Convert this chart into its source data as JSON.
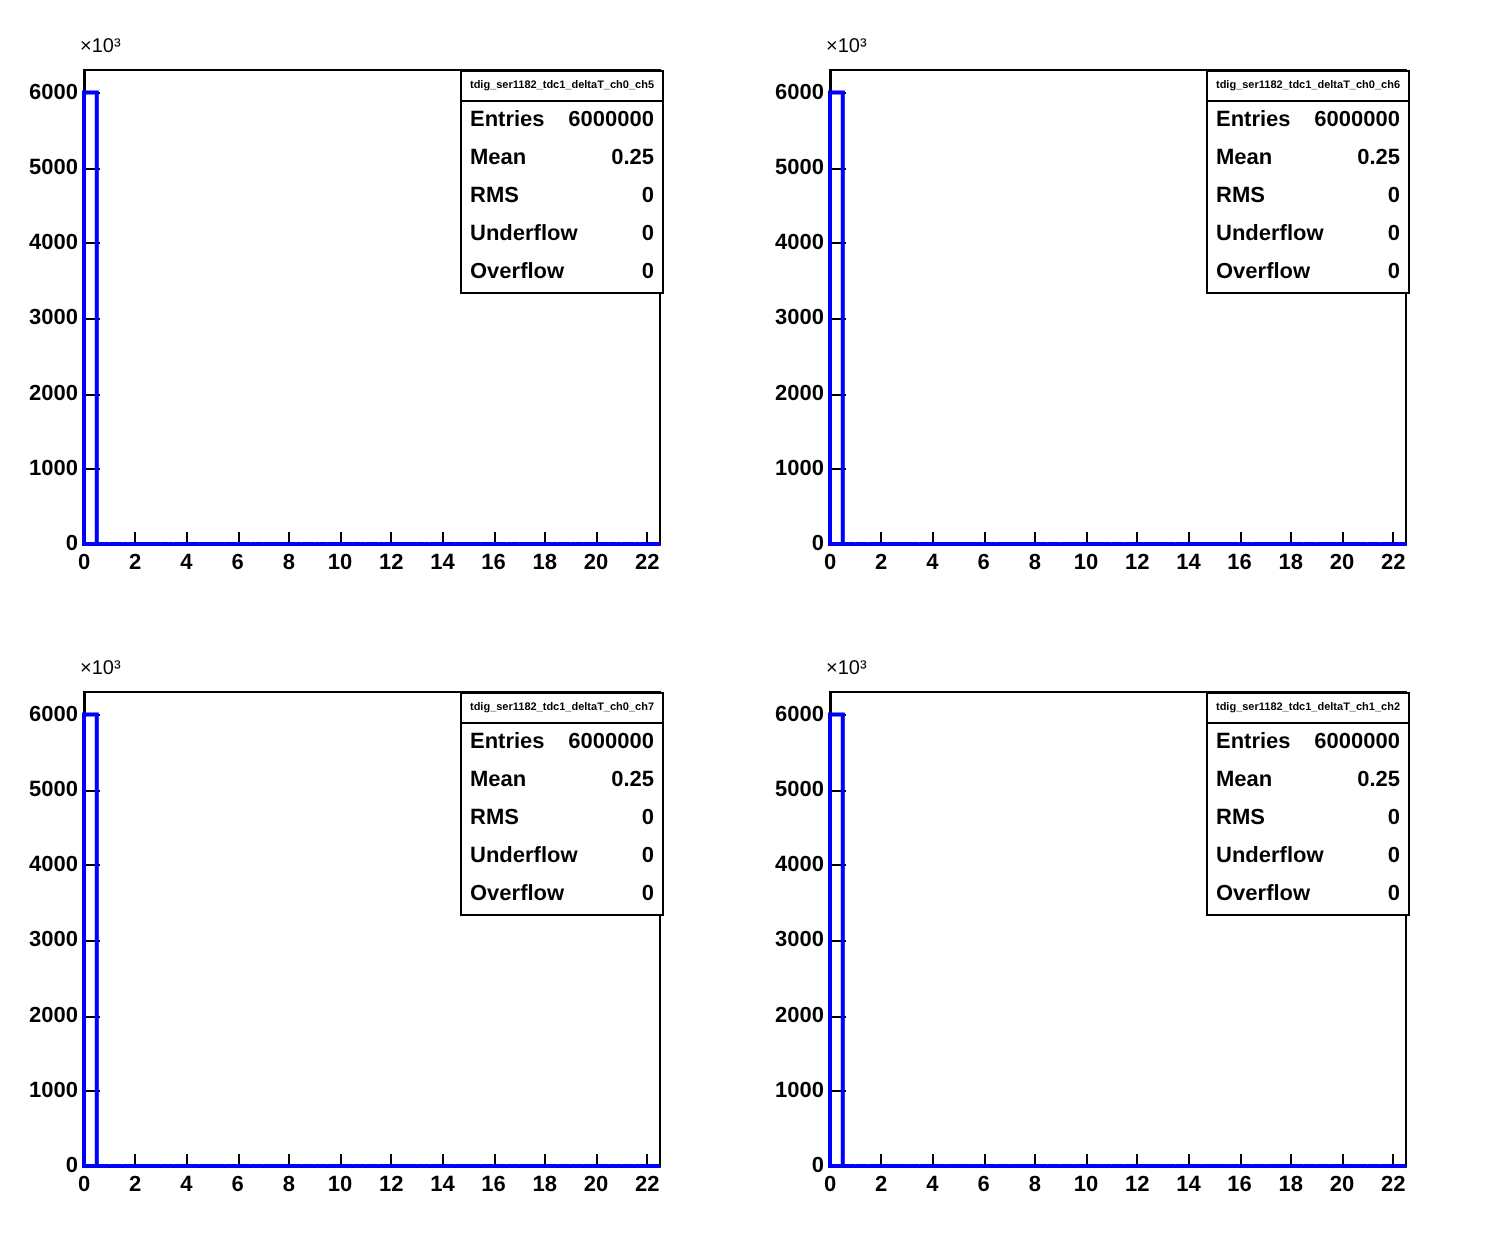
{
  "chart_data": [
    {
      "type": "histogram",
      "title": "tdig_ser1182_tdc1_deltaT_ch0_ch5",
      "color": "#0000ff",
      "bins": [
        0,
        0.5,
        1,
        1.5,
        2,
        2.5,
        3,
        3.5,
        4,
        4.5,
        5,
        5.5,
        6,
        6.5,
        7,
        7.5,
        8,
        8.5,
        9,
        9.5,
        10,
        10.5,
        11,
        11.5,
        12,
        12.5,
        13,
        13.5,
        14,
        14.5,
        15,
        15.5,
        16,
        16.5,
        17,
        17.5,
        18,
        18.5,
        19,
        19.5,
        20,
        20.5,
        21,
        21.5,
        22,
        22.5
      ],
      "values": [
        6000,
        0,
        0,
        0,
        0,
        0,
        0,
        0,
        0,
        0,
        0,
        0,
        0,
        0,
        0,
        0,
        0,
        0,
        0,
        0,
        0,
        0,
        0,
        0,
        0,
        0,
        0,
        0,
        0,
        0,
        0,
        0,
        0,
        0,
        0,
        0,
        0,
        0,
        0,
        0,
        0,
        0,
        0,
        0,
        0
      ],
      "xlim": [
        0,
        22.5
      ],
      "xticks": [
        0,
        2,
        4,
        6,
        8,
        10,
        12,
        14,
        16,
        18,
        20,
        22
      ],
      "ylim": [
        0,
        6300
      ],
      "yticks": [
        0,
        1000,
        2000,
        3000,
        4000,
        5000,
        6000
      ],
      "grid": false,
      "annotations": [
        "×10³",
        "Entries",
        "6000000",
        "Mean",
        "0.25",
        "RMS",
        "0",
        "Underflow",
        "0",
        "Overflow",
        "0"
      ]
    },
    {
      "type": "histogram",
      "title": "tdig_ser1182_tdc1_deltaT_ch0_ch6",
      "color": "#0000ff",
      "bins": [
        0,
        0.5,
        1,
        1.5,
        2,
        2.5,
        3,
        3.5,
        4,
        4.5,
        5,
        5.5,
        6,
        6.5,
        7,
        7.5,
        8,
        8.5,
        9,
        9.5,
        10,
        10.5,
        11,
        11.5,
        12,
        12.5,
        13,
        13.5,
        14,
        14.5,
        15,
        15.5,
        16,
        16.5,
        17,
        17.5,
        18,
        18.5,
        19,
        19.5,
        20,
        20.5,
        21,
        21.5,
        22,
        22.5
      ],
      "values": [
        6000,
        0,
        0,
        0,
        0,
        0,
        0,
        0,
        0,
        0,
        0,
        0,
        0,
        0,
        0,
        0,
        0,
        0,
        0,
        0,
        0,
        0,
        0,
        0,
        0,
        0,
        0,
        0,
        0,
        0,
        0,
        0,
        0,
        0,
        0,
        0,
        0,
        0,
        0,
        0,
        0,
        0,
        0,
        0,
        0
      ],
      "xlim": [
        0,
        22.5
      ],
      "xticks": [
        0,
        2,
        4,
        6,
        8,
        10,
        12,
        14,
        16,
        18,
        20,
        22
      ],
      "ylim": [
        0,
        6300
      ],
      "yticks": [
        0,
        1000,
        2000,
        3000,
        4000,
        5000,
        6000
      ],
      "grid": false,
      "annotations": [
        "×10³",
        "Entries",
        "6000000",
        "Mean",
        "0.25",
        "RMS",
        "0",
        "Underflow",
        "0",
        "Overflow",
        "0"
      ]
    },
    {
      "type": "histogram",
      "title": "tdig_ser1182_tdc1_deltaT_ch0_ch7",
      "color": "#0000ff",
      "bins": [
        0,
        0.5,
        1,
        1.5,
        2,
        2.5,
        3,
        3.5,
        4,
        4.5,
        5,
        5.5,
        6,
        6.5,
        7,
        7.5,
        8,
        8.5,
        9,
        9.5,
        10,
        10.5,
        11,
        11.5,
        12,
        12.5,
        13,
        13.5,
        14,
        14.5,
        15,
        15.5,
        16,
        16.5,
        17,
        17.5,
        18,
        18.5,
        19,
        19.5,
        20,
        20.5,
        21,
        21.5,
        22,
        22.5
      ],
      "values": [
        6000,
        0,
        0,
        0,
        0,
        0,
        0,
        0,
        0,
        0,
        0,
        0,
        0,
        0,
        0,
        0,
        0,
        0,
        0,
        0,
        0,
        0,
        0,
        0,
        0,
        0,
        0,
        0,
        0,
        0,
        0,
        0,
        0,
        0,
        0,
        0,
        0,
        0,
        0,
        0,
        0,
        0,
        0,
        0,
        0
      ],
      "xlim": [
        0,
        22.5
      ],
      "xticks": [
        0,
        2,
        4,
        6,
        8,
        10,
        12,
        14,
        16,
        18,
        20,
        22
      ],
      "ylim": [
        0,
        6300
      ],
      "yticks": [
        0,
        1000,
        2000,
        3000,
        4000,
        5000,
        6000
      ],
      "grid": false,
      "annotations": [
        "×10³",
        "Entries",
        "6000000",
        "Mean",
        "0.25",
        "RMS",
        "0",
        "Underflow",
        "0",
        "Overflow",
        "0"
      ]
    },
    {
      "type": "histogram",
      "title": "tdig_ser1182_tdc1_deltaT_ch1_ch2",
      "color": "#0000ff",
      "bins": [
        0,
        0.5,
        1,
        1.5,
        2,
        2.5,
        3,
        3.5,
        4,
        4.5,
        5,
        5.5,
        6,
        6.5,
        7,
        7.5,
        8,
        8.5,
        9,
        9.5,
        10,
        10.5,
        11,
        11.5,
        12,
        12.5,
        13,
        13.5,
        14,
        14.5,
        15,
        15.5,
        16,
        16.5,
        17,
        17.5,
        18,
        18.5,
        19,
        19.5,
        20,
        20.5,
        21,
        21.5,
        22,
        22.5
      ],
      "values": [
        6000,
        0,
        0,
        0,
        0,
        0,
        0,
        0,
        0,
        0,
        0,
        0,
        0,
        0,
        0,
        0,
        0,
        0,
        0,
        0,
        0,
        0,
        0,
        0,
        0,
        0,
        0,
        0,
        0,
        0,
        0,
        0,
        0,
        0,
        0,
        0,
        0,
        0,
        0,
        0,
        0,
        0,
        0,
        0,
        0
      ],
      "xlim": [
        0,
        22.5
      ],
      "xticks": [
        0,
        2,
        4,
        6,
        8,
        10,
        12,
        14,
        16,
        18,
        20,
        22
      ],
      "ylim": [
        0,
        6300
      ],
      "yticks": [
        0,
        1000,
        2000,
        3000,
        4000,
        5000,
        6000
      ],
      "grid": false,
      "annotations": [
        "×10³",
        "Entries",
        "6000000",
        "Mean",
        "0.25",
        "RMS",
        "0",
        "Underflow",
        "0",
        "Overflow",
        "0"
      ]
    }
  ]
}
